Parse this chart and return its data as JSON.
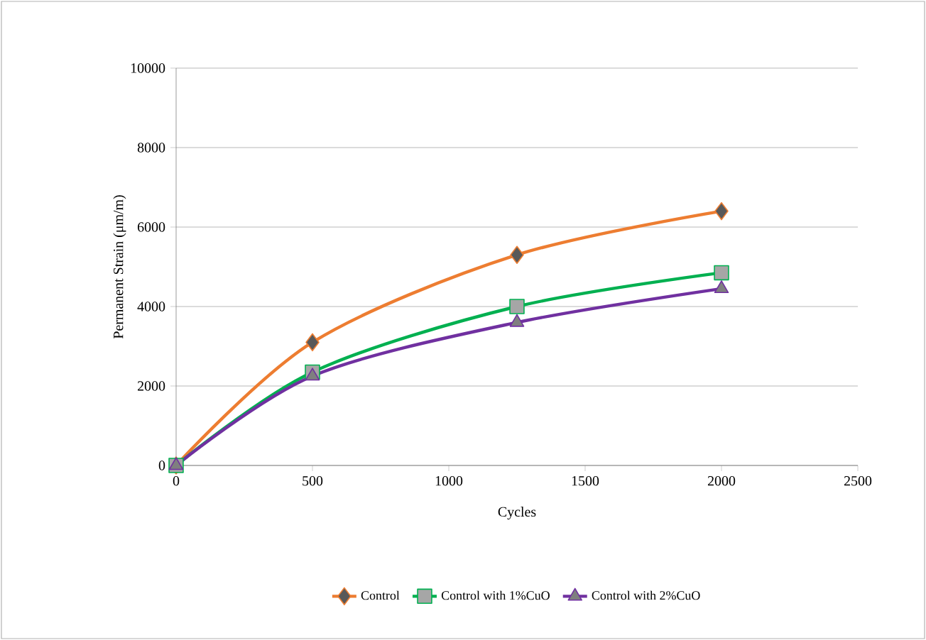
{
  "chart_data": {
    "type": "line",
    "xlabel": "Cycles",
    "ylabel": "Permanent Strain (μm/m)",
    "x": [
      0,
      500,
      1250,
      2000
    ],
    "series": [
      {
        "name": "Control",
        "color": "#ed7d31",
        "marker": "diamond",
        "values": [
          0,
          3100,
          5300,
          6400
        ]
      },
      {
        "name": "Control with 1%CuO",
        "color": "#00b050",
        "marker": "square",
        "values": [
          0,
          2350,
          4000,
          4850
        ]
      },
      {
        "name": "Control with 2%CuO",
        "color": "#7030a0",
        "marker": "triangle",
        "values": [
          0,
          2250,
          3600,
          4450
        ]
      }
    ],
    "xlim": [
      0,
      2500
    ],
    "xticks": [
      0,
      500,
      1000,
      1500,
      2000,
      2500
    ],
    "ylim": [
      0,
      10000
    ],
    "yticks": [
      0,
      2000,
      4000,
      6000,
      8000,
      10000
    ],
    "grid": "y",
    "legend": "bottom",
    "line_style": "solid"
  }
}
